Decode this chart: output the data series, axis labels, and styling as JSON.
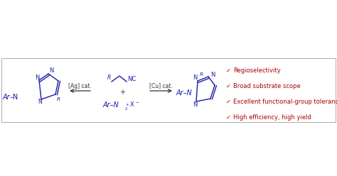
{
  "bg_color": "#ffffff",
  "box_color": "#aaaaaa",
  "blue": "#1a1aaa",
  "red": "#aa0000",
  "black": "#333333",
  "arrow1_label": "[Ag] cat.",
  "arrow2_label": "[Cu] cat.",
  "bullet_points": [
    "Regioselectivity",
    "Broad substrate scope",
    "Excellent functional-group tolerance",
    "High efficiency, high yield"
  ],
  "figsize": [
    4.74,
    2.48
  ],
  "dpi": 100
}
